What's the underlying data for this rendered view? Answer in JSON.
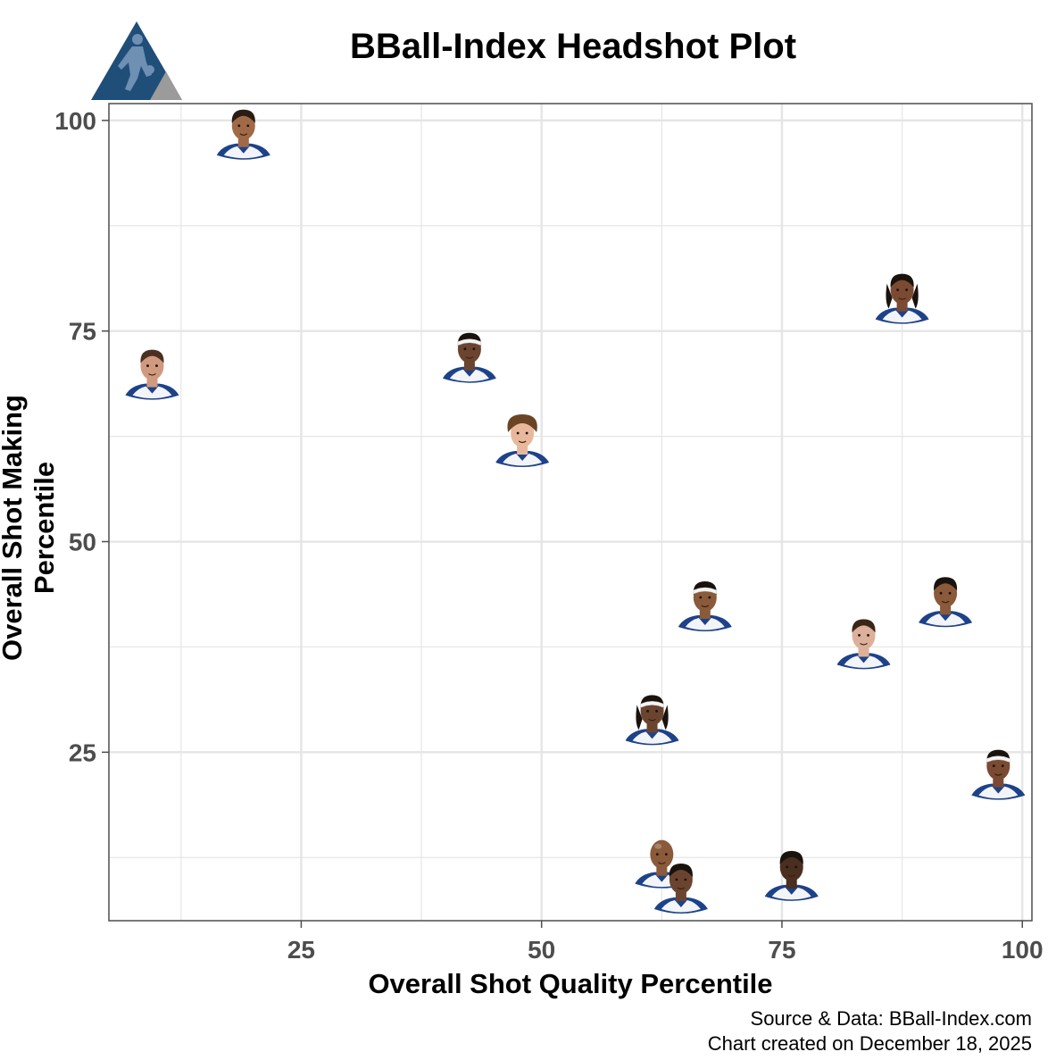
{
  "title": "BBall-Index Headshot Plot",
  "logo": {
    "name": "bball-index-logo",
    "colors": {
      "primary": "#1f4e79",
      "secondary": "#9b9b9b"
    }
  },
  "footer": {
    "source": "Source & Data: BBall-Index.com",
    "created": "Chart created on December 18, 2025"
  },
  "colors": {
    "jersey_blue": "#1d428a",
    "jersey_white": "#f2f4f8",
    "grid": "#e5e5e5",
    "axis": "#4d4d4d"
  },
  "chart_data": {
    "type": "scatter",
    "xlabel": "Overall Shot Quality Percentile",
    "ylabel": "Overall Shot Making Percentile",
    "xlim": [
      5,
      101
    ],
    "ylim": [
      5,
      102
    ],
    "x_ticks": [
      25,
      50,
      75,
      100
    ],
    "y_ticks": [
      25,
      50,
      75,
      100
    ],
    "grid": true,
    "marker": "player headshot",
    "points": [
      {
        "x": 19,
        "y": 98,
        "skin": "#a06a48",
        "hair": "#2a1c14",
        "hair_style": "short",
        "band": false
      },
      {
        "x": 9.5,
        "y": 69.5,
        "skin": "#d09a80",
        "hair": "#4a3020",
        "hair_style": "short",
        "band": false
      },
      {
        "x": 42.5,
        "y": 71.5,
        "skin": "#6b4430",
        "hair": "#1a120d",
        "hair_style": "short",
        "band": true
      },
      {
        "x": 48,
        "y": 61.5,
        "skin": "#e8b89c",
        "hair": "#6b4426",
        "hair_style": "curly",
        "band": false
      },
      {
        "x": 87.5,
        "y": 78.5,
        "skin": "#7a4a32",
        "hair": "#1a120d",
        "hair_style": "locs",
        "band": false
      },
      {
        "x": 67,
        "y": 42,
        "skin": "#8a5a3a",
        "hair": "#1a120d",
        "hair_style": "short",
        "band": true
      },
      {
        "x": 92,
        "y": 42.5,
        "skin": "#8a5a3a",
        "hair": "#1a120d",
        "hair_style": "short",
        "band": false
      },
      {
        "x": 83.5,
        "y": 37.5,
        "skin": "#dcb09a",
        "hair": "#3a2618",
        "hair_style": "short",
        "band": false
      },
      {
        "x": 61.5,
        "y": 28.5,
        "skin": "#6b4430",
        "hair": "#1a120d",
        "hair_style": "locs",
        "band": true
      },
      {
        "x": 97.5,
        "y": 22,
        "skin": "#7a4a32",
        "hair": "#1a120d",
        "hair_style": "short",
        "band": true
      },
      {
        "x": 62.5,
        "y": 11.5,
        "skin": "#8a5a3a",
        "hair": "#6b4430",
        "hair_style": "bald",
        "band": false
      },
      {
        "x": 76,
        "y": 10,
        "skin": "#4a2e20",
        "hair": "#1a120d",
        "hair_style": "short",
        "band": false
      },
      {
        "x": 64.5,
        "y": 8.5,
        "skin": "#6b4430",
        "hair": "#1a120d",
        "hair_style": "short",
        "band": false
      }
    ]
  }
}
